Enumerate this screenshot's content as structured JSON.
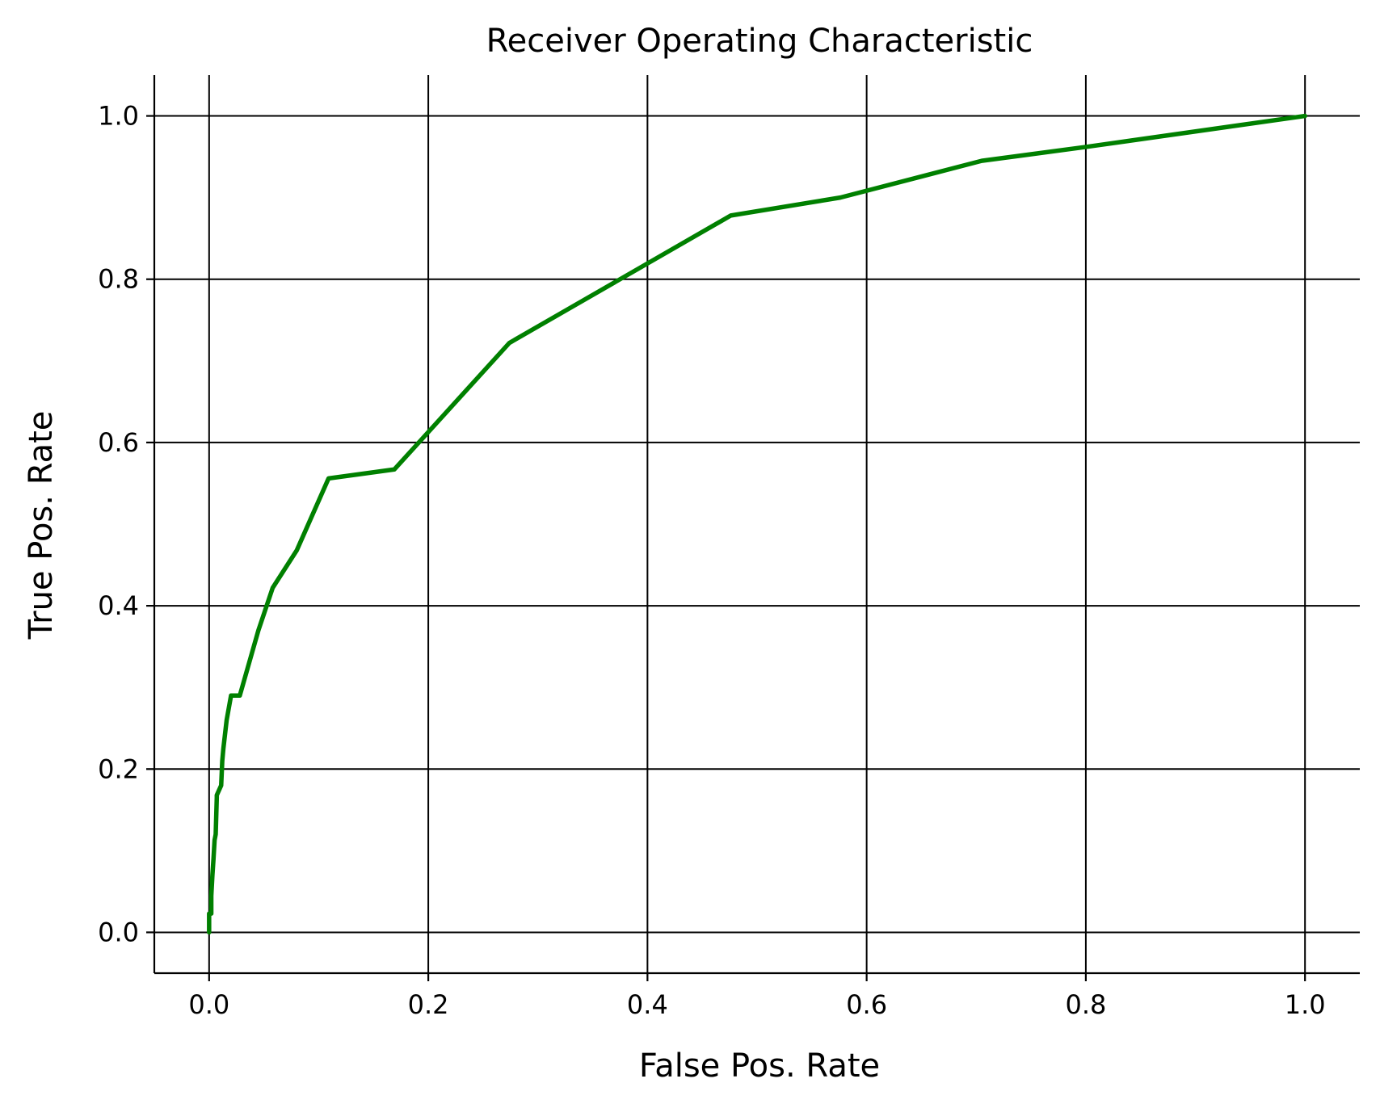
{
  "chart_data": {
    "type": "line",
    "title": "Receiver Operating Characteristic",
    "xlabel": "False Pos. Rate",
    "ylabel": "True Pos. Rate",
    "xlim": [
      -0.05,
      1.05
    ],
    "ylim": [
      -0.05,
      1.05
    ],
    "xticks": [
      0.0,
      0.2,
      0.4,
      0.6,
      0.8,
      1.0
    ],
    "yticks": [
      0.0,
      0.2,
      0.4,
      0.6,
      0.8,
      1.0
    ],
    "xtick_labels": [
      "0.0",
      "0.2",
      "0.4",
      "0.6",
      "0.8",
      "1.0"
    ],
    "ytick_labels": [
      "0.0",
      "0.2",
      "0.4",
      "0.6",
      "0.8",
      "1.0"
    ],
    "grid": true,
    "spines": [
      "left",
      "bottom"
    ],
    "series": [
      {
        "color": "#008000",
        "x": [
          0.0,
          0.0,
          0.002,
          0.002,
          0.003,
          0.004,
          0.005,
          0.006,
          0.007,
          0.007,
          0.011,
          0.012,
          0.013,
          0.016,
          0.02,
          0.028,
          0.045,
          0.058,
          0.08,
          0.109,
          0.169,
          0.274,
          0.476,
          0.576,
          0.705,
          0.8,
          1.0
        ],
        "y": [
          0.0,
          0.023,
          0.023,
          0.045,
          0.07,
          0.09,
          0.113,
          0.12,
          0.165,
          0.168,
          0.18,
          0.21,
          0.225,
          0.26,
          0.29,
          0.29,
          0.37,
          0.422,
          0.468,
          0.556,
          0.567,
          0.722,
          0.878,
          0.9,
          0.945,
          0.962,
          1.0
        ]
      }
    ]
  }
}
